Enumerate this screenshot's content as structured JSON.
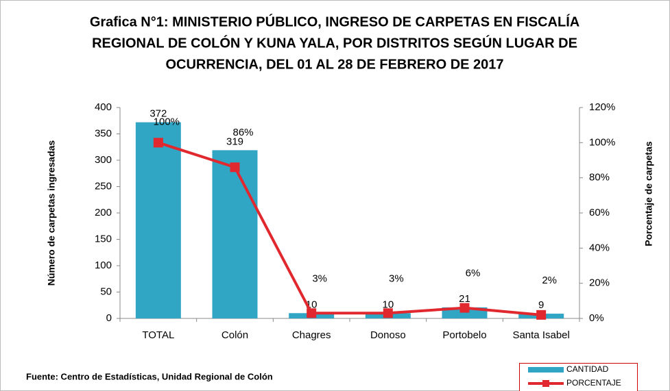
{
  "chart_data": {
    "type": "bar_line",
    "title": [
      "Grafica N°1: MINISTERIO PÚBLICO, INGRESO DE CARPETAS EN FISCALÍA",
      "REGIONAL DE COLÓN Y KUNA YALA, POR DISTRITOS SEGÚN LUGAR DE",
      "OCURRENCIA, DEL 01 AL 28 DE FEBRERO DE 2017"
    ],
    "y_label": "Número de carpetas ingresadas",
    "y2_label": "Porcentaje de carpetas",
    "source": "Fuente: Centro de Estadísticas, Unidad Regional de Colón",
    "categories": [
      "TOTAL",
      "Colón",
      "Chagres",
      "Donoso",
      "Portobelo",
      "Santa Isabel"
    ],
    "series": [
      {
        "name": "CANTIDAD",
        "type": "bar",
        "color": "#31a5c4",
        "values": [
          372,
          319,
          10,
          10,
          21,
          9
        ]
      },
      {
        "name": "PORCENTAJE",
        "type": "line",
        "axis": "y2",
        "color": "#e0282e",
        "values": [
          100,
          86,
          3,
          3,
          6,
          2
        ],
        "value_labels": [
          "100%",
          "86%",
          "3%",
          "3%",
          "6%",
          "2%"
        ]
      }
    ],
    "ylim": [
      0,
      400
    ],
    "yticks": [
      0,
      50,
      100,
      150,
      200,
      250,
      300,
      350,
      400
    ],
    "y2lim": [
      0,
      120
    ],
    "y2ticks": [
      {
        "value": 0,
        "label": "0%"
      },
      {
        "value": 20,
        "label": "20%"
      },
      {
        "value": 40,
        "label": "40%"
      },
      {
        "value": 60,
        "label": "60%"
      },
      {
        "value": 80,
        "label": "80%"
      },
      {
        "value": 100,
        "label": "100%"
      },
      {
        "value": 120,
        "label": "120%"
      }
    ],
    "legend": "bottom-right",
    "grid": false
  }
}
